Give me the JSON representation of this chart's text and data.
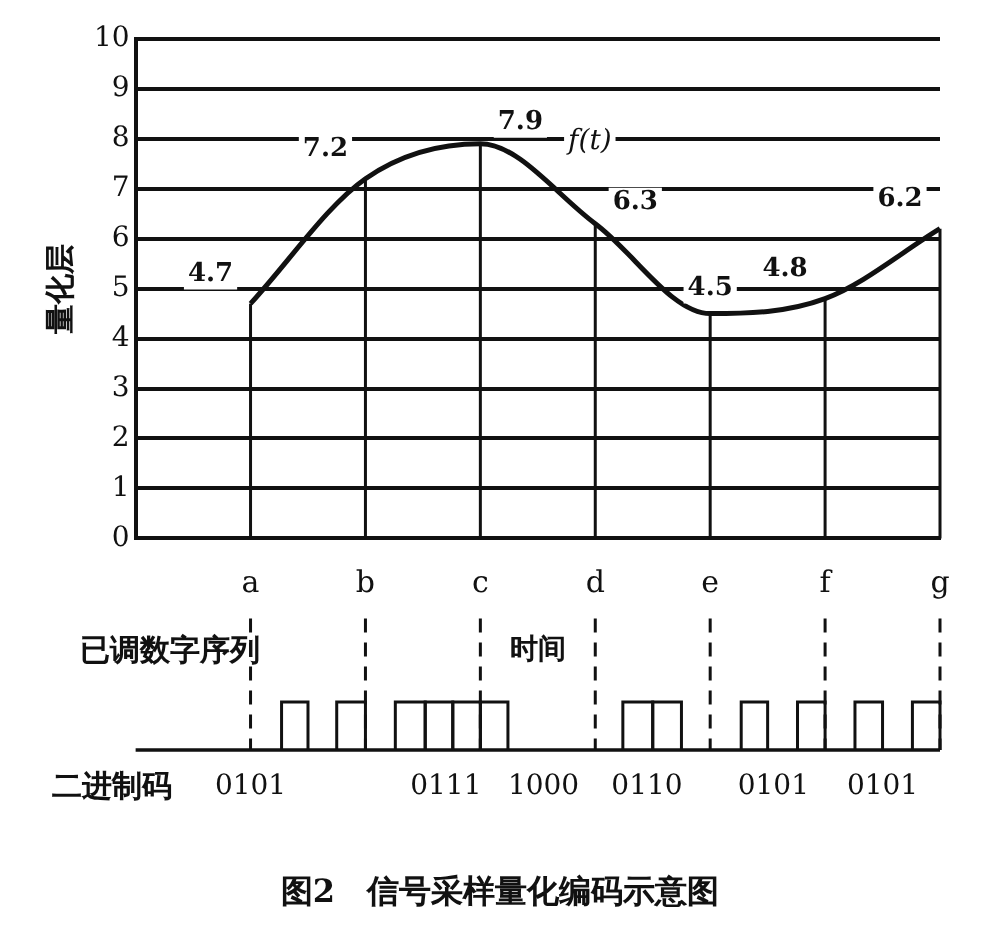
{
  "chart_data": {
    "type": "line",
    "title": "图2　信号采样量化编码示意图",
    "xlabel": "时间",
    "ylabel": "量化层",
    "categories": [
      "a",
      "b",
      "c",
      "d",
      "e",
      "f",
      "g"
    ],
    "series": [
      {
        "name": "f(t)",
        "color": "#111111",
        "values": [
          4.7,
          7.2,
          7.9,
          6.3,
          4.5,
          4.8,
          6.2
        ]
      }
    ],
    "ylim": [
      0,
      10
    ],
    "yticks": [
      0,
      1,
      2,
      3,
      4,
      5,
      6,
      7,
      8,
      9,
      10
    ],
    "grid": true,
    "data_labels": true,
    "marker": "none",
    "line_style": "solid",
    "annotations": [
      "已调数字序列",
      "二进制码",
      "0101",
      "0111",
      "1000",
      "0110",
      "0101",
      "0101"
    ]
  }
}
